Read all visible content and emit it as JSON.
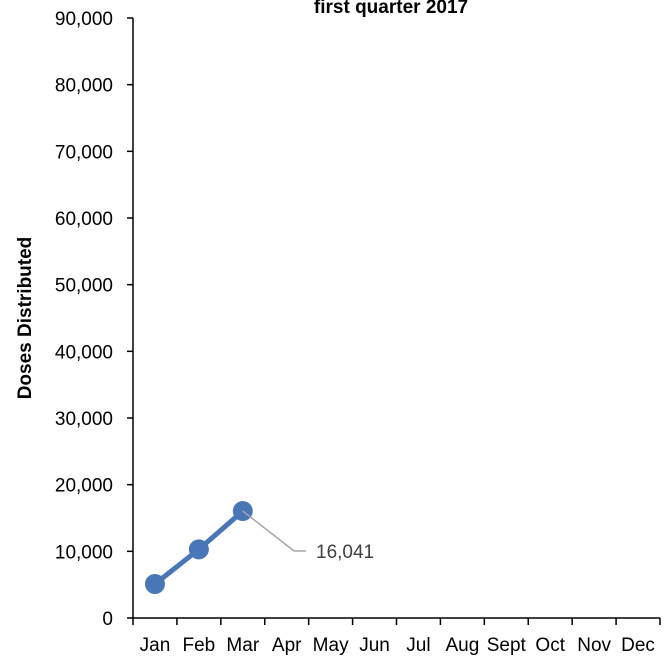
{
  "chart_data": {
    "type": "line",
    "title": "first quarter 2017",
    "xlabel": "",
    "ylabel": "Doses Distributed",
    "categories": [
      "Jan",
      "Feb",
      "Mar",
      "Apr",
      "May",
      "Jun",
      "Jul",
      "Aug",
      "Sept",
      "Oct",
      "Nov",
      "Dec"
    ],
    "series": [
      {
        "values": [
          5100,
          10300,
          16041,
          null,
          null,
          null,
          null,
          null,
          null,
          null,
          null,
          null
        ],
        "color": "#4a76b8"
      }
    ],
    "ylim": [
      0,
      90000
    ],
    "yticks": [
      0,
      10000,
      20000,
      30000,
      40000,
      50000,
      60000,
      70000,
      80000,
      90000
    ],
    "ytick_labels": [
      "0",
      "10,000",
      "20,000",
      "30,000",
      "40,000",
      "50,000",
      "60,000",
      "70,000",
      "80,000",
      "90,000"
    ],
    "data_labels": [
      {
        "category": "Mar",
        "value": 16041,
        "text": "16,041"
      }
    ],
    "grid": false,
    "legend": "none"
  }
}
